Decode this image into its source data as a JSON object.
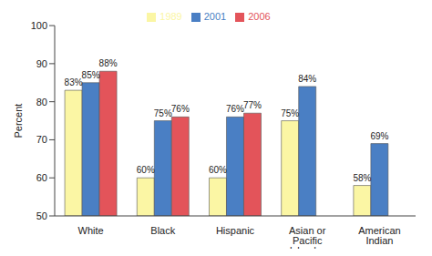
{
  "chart_data": {
    "type": "bar",
    "y_label": "Percent",
    "categories": [
      "White",
      "Black",
      "Hispanic",
      "Asian or Pacific Islander",
      "American Indian"
    ],
    "series": [
      {
        "name": "1989",
        "color": "#fbf6a4",
        "values": [
          83,
          60,
          60,
          75,
          58
        ],
        "value_labels": [
          "83%",
          "60%",
          "60%",
          "75%",
          "58%"
        ]
      },
      {
        "name": "2001",
        "color": "#4a7fc4",
        "values": [
          85,
          75,
          76,
          84,
          69
        ],
        "value_labels": [
          "85%",
          "75%",
          "76%",
          "84%",
          "69%"
        ]
      },
      {
        "name": "2006",
        "color": "#e3545a",
        "values": [
          88,
          76,
          77,
          null,
          null
        ],
        "value_labels": [
          "88%",
          "76%",
          "77%",
          null,
          null
        ]
      }
    ],
    "ylim": [
      50,
      100
    ],
    "yticks": [
      50,
      60,
      70,
      80,
      90,
      100
    ],
    "grid": false,
    "legend": "top",
    "data_labels": true
  }
}
